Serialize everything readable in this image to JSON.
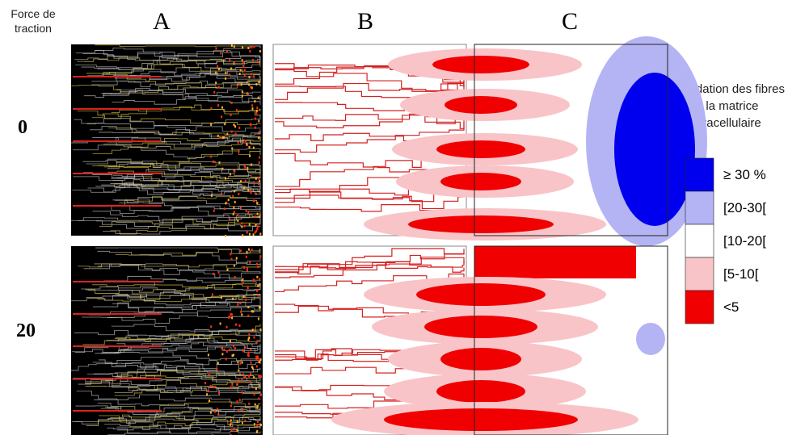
{
  "header": {
    "force_label": "Force de traction",
    "columns": [
      "A",
      "B",
      "C"
    ]
  },
  "rows": [
    {
      "label": "0"
    },
    {
      "label": "20"
    }
  ],
  "legend": {
    "title": "Dégradation des fibres de la matrice extracellulaire",
    "items": [
      {
        "label": "≥ 30 %",
        "color": "#0000ee"
      },
      {
        "label": "[20-30[",
        "color": "#b4b4f4"
      },
      {
        "label": "[10-20[",
        "color": "#ffffff"
      },
      {
        "label": "[5-10[",
        "color": "#f8c4c8"
      },
      {
        "label": "<5",
        "color": "#f00000"
      }
    ]
  }
}
